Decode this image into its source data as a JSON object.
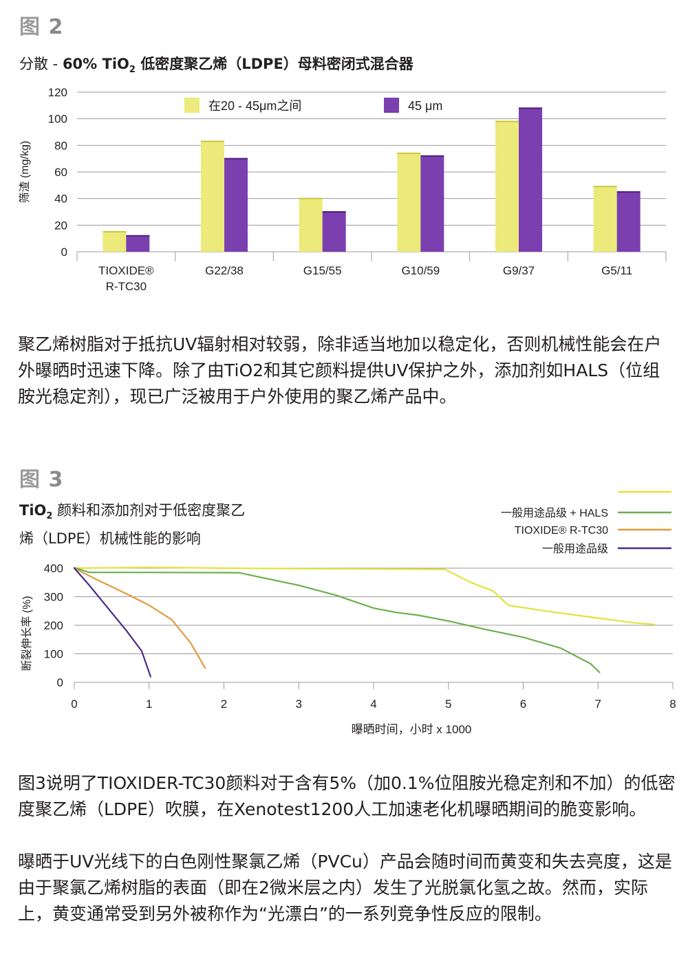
{
  "figure2": {
    "label_prefix": "图",
    "label_number": "2",
    "title_a": "分散 - ",
    "title_b": "60% TiO",
    "title_sub": "2",
    "title_c": " 低密度聚乙烯（LDPE）母料密闭式混合器"
  },
  "paragraph1": "聚乙烯树脂对于抵抗UV辐射相对较弱，除非适当地加以稳定化，否则机械性能会在户外曝晒时迅速下降。除了由TiO2和其它颜料提供UV保护之外，添加剂如HALS（位组胺光稳定剂），现已广泛被用于户外使用的聚乙烯产品中。",
  "figure3": {
    "label_prefix": "图",
    "label_number": "3",
    "title_line1_a": "TiO",
    "title_line1_sub": "2",
    "title_line1_b": " 颜料和添加剂对于低密度聚乙",
    "title_line2": "烯（LDPE）机械性能的影响"
  },
  "paragraph2": "图3说明了TIOXIDER-TC30颜料对于含有5%（加0.1%位阻胺光稳定剂和不加）的低密度聚乙烯（LDPE）吹膜，在Xenotest1200人工加速老化机曝晒期间的脆变影响。",
  "paragraph3": "曝晒于UV光线下的白色刚性聚氯乙烯（PVCu）产品会随时间而黄变和失去亮度，这是由于聚氯乙烯树脂的表面（即在2微米层之内）发生了光脱氯化氢之故。然而，实际上，黄变通常受到另外被称作为“光漂白”的一系列竞争性反应的限制。",
  "chart_data": [
    {
      "type": "bar",
      "categories": [
        "TIOXIDE® R-TC30",
        "G22/38",
        "G15/55",
        "G10/59",
        "G9/37",
        "G5/11"
      ],
      "category_lines": [
        [
          "TIOXIDE®",
          "R-TC30"
        ],
        [
          "G22/38"
        ],
        [
          "G15/55"
        ],
        [
          "G10/59"
        ],
        [
          "G9/37"
        ],
        [
          "G5/11"
        ]
      ],
      "series": [
        {
          "name": "在20 - 45μm之间",
          "color": "#ecea7a",
          "values": [
            15,
            83,
            40,
            74,
            98,
            49
          ]
        },
        {
          "name": "45 μm",
          "color": "#7b3fb0",
          "values": [
            12,
            70,
            30,
            72,
            108,
            45
          ]
        }
      ],
      "ylabel": "筛渣 (mg/kg)",
      "ylim": [
        0,
        120
      ],
      "yticks": [
        0,
        20,
        40,
        60,
        80,
        100,
        120
      ],
      "grid": true,
      "legend_position": "top"
    },
    {
      "type": "line",
      "xlabel": "曝晒时间，小时 x 1000",
      "ylabel": "断裂伸长率 (%)",
      "xlim": [
        0,
        8
      ],
      "ylim": [
        0,
        400
      ],
      "xticks": [
        0,
        1,
        2,
        3,
        4,
        5,
        6,
        7,
        8
      ],
      "yticks": [
        0,
        100,
        200,
        300,
        400
      ],
      "grid": true,
      "legend_position": "top-right",
      "series": [
        {
          "name": "",
          "color": "#e2e33a",
          "points": [
            [
              0,
              400
            ],
            [
              1,
              403
            ],
            [
              2,
              400
            ],
            [
              3,
              398
            ],
            [
              4,
              397
            ],
            [
              4.95,
              396
            ],
            [
              5.3,
              350
            ],
            [
              5.6,
              320
            ],
            [
              5.8,
              270
            ],
            [
              6.3,
              250
            ],
            [
              7,
              225
            ],
            [
              7.5,
              208
            ],
            [
              7.75,
              203
            ]
          ]
        },
        {
          "name": "一般用途品级 + HALS",
          "color": "#6ab04c",
          "points": [
            [
              0,
              402
            ],
            [
              0.2,
              385
            ],
            [
              1,
              385
            ],
            [
              2.2,
              384
            ],
            [
              2.6,
              362
            ],
            [
              3,
              340
            ],
            [
              3.5,
              305
            ],
            [
              4,
              260
            ],
            [
              4.3,
              245
            ],
            [
              4.6,
              235
            ],
            [
              5,
              215
            ],
            [
              5.5,
              185
            ],
            [
              6,
              158
            ],
            [
              6.5,
              120
            ],
            [
              6.9,
              65
            ],
            [
              7.02,
              35
            ]
          ]
        },
        {
          "name": "TIOXIDE® R-TC30",
          "color": "#e39a3a",
          "points": [
            [
              0,
              400
            ],
            [
              0.3,
              360
            ],
            [
              0.7,
              310
            ],
            [
              1,
              270
            ],
            [
              1.3,
              220
            ],
            [
              1.55,
              140
            ],
            [
              1.75,
              50
            ]
          ]
        },
        {
          "name": "一般用途品级",
          "color": "#4a2a8a",
          "points": [
            [
              0,
              400
            ],
            [
              0.2,
              340
            ],
            [
              0.45,
              260
            ],
            [
              0.7,
              180
            ],
            [
              0.9,
              110
            ],
            [
              1.02,
              20
            ]
          ]
        }
      ]
    }
  ]
}
